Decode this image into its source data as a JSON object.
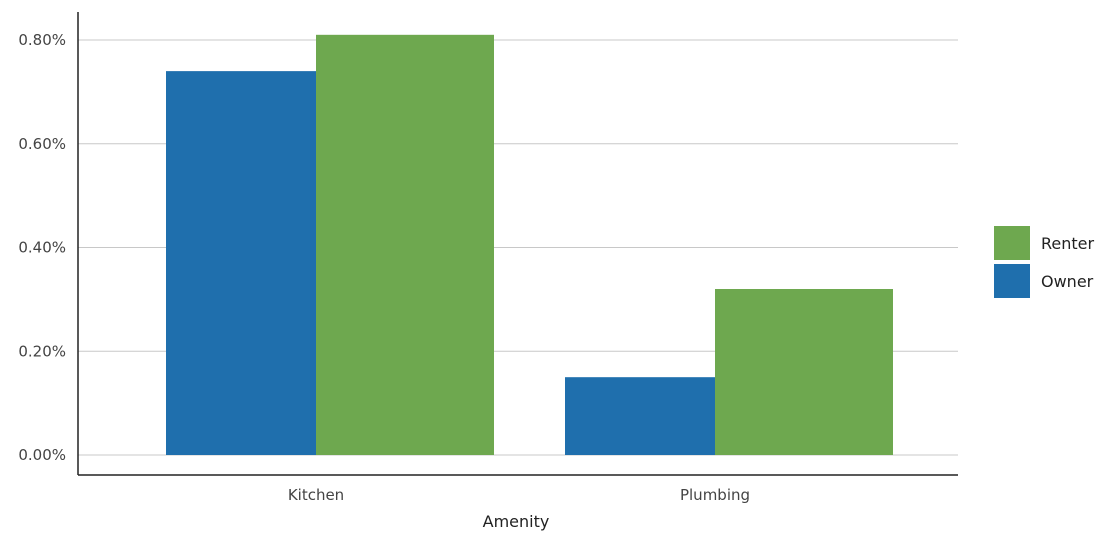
{
  "chart_data": {
    "type": "bar",
    "title": "",
    "xlabel": "Amenity",
    "ylabel": "",
    "categories": [
      "Kitchen",
      "Plumbing"
    ],
    "series": [
      {
        "name": "Owner",
        "values": [
          0.74,
          0.15
        ],
        "color": "#1f6fad"
      },
      {
        "name": "Renter",
        "values": [
          0.81,
          0.32
        ],
        "color": "#6ea84f"
      }
    ],
    "ylim": [
      0,
      0.8
    ],
    "yticks": [
      "0.00%",
      "0.20%",
      "0.40%",
      "0.60%",
      "0.80%"
    ],
    "grid": true,
    "legend": {
      "placement": "right",
      "order": [
        "Renter",
        "Owner"
      ]
    }
  }
}
